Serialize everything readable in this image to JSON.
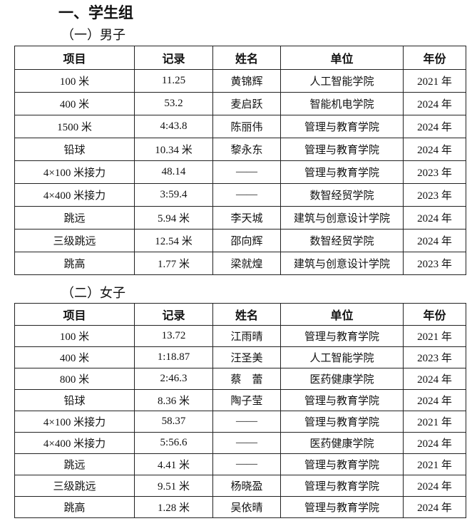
{
  "title": "一、学生组",
  "headers": [
    "项目",
    "记录",
    "姓名",
    "单位",
    "年份"
  ],
  "sections": [
    {
      "title": "（一）男子",
      "rows": [
        [
          "100 米",
          "11.25",
          "黄锦辉",
          "人工智能学院",
          "2021 年"
        ],
        [
          "400 米",
          "53.2",
          "麦启跃",
          "智能机电学院",
          "2024 年"
        ],
        [
          "1500 米",
          "4:43.8",
          "陈丽伟",
          "管理与教育学院",
          "2024 年"
        ],
        [
          "铅球",
          "10.34 米",
          "黎永东",
          "管理与教育学院",
          "2024 年"
        ],
        [
          "4×100 米接力",
          "48.14",
          "——",
          "管理与教育学院",
          "2023 年"
        ],
        [
          "4×400 米接力",
          "3:59.4",
          "——",
          "数智经贸学院",
          "2023 年"
        ],
        [
          "跳远",
          "5.94 米",
          "李天城",
          "建筑与创意设计学院",
          "2024 年"
        ],
        [
          "三级跳远",
          "12.54 米",
          "邵向辉",
          "数智经贸学院",
          "2024 年"
        ],
        [
          "跳高",
          "1.77 米",
          "梁就煌",
          "建筑与创意设计学院",
          "2023 年"
        ]
      ]
    },
    {
      "title": "（二）女子",
      "rows": [
        [
          "100 米",
          "13.72",
          "江雨晴",
          "管理与教育学院",
          "2021 年"
        ],
        [
          "400 米",
          "1:18.87",
          "汪圣美",
          "人工智能学院",
          "2023 年"
        ],
        [
          "800 米",
          "2:46.3",
          "蔡　蕾",
          "医药健康学院",
          "2024 年"
        ],
        [
          "铅球",
          "8.36 米",
          "陶子莹",
          "管理与教育学院",
          "2024 年"
        ],
        [
          "4×100 米接力",
          "58.37",
          "——",
          "管理与教育学院",
          "2021 年"
        ],
        [
          "4×400 米接力",
          "5:56.6",
          "——",
          "医药健康学院",
          "2024 年"
        ],
        [
          "跳远",
          "4.41 米",
          "——",
          "管理与教育学院",
          "2021 年"
        ],
        [
          "三级跳远",
          "9.51 米",
          "杨晓盈",
          "管理与教育学院",
          "2024 年"
        ],
        [
          "跳高",
          "1.28 米",
          "吴依晴",
          "管理与教育学院",
          "2024 年"
        ]
      ]
    }
  ]
}
